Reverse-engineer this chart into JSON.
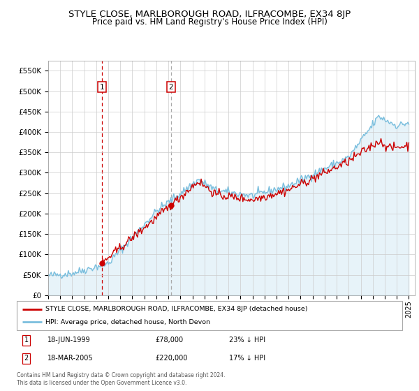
{
  "title": "STYLE CLOSE, MARLBOROUGH ROAD, ILFRACOMBE, EX34 8JP",
  "subtitle": "Price paid vs. HM Land Registry's House Price Index (HPI)",
  "legend_line1": "STYLE CLOSE, MARLBOROUGH ROAD, ILFRACOMBE, EX34 8JP (detached house)",
  "legend_line2": "HPI: Average price, detached house, North Devon",
  "footer": "Contains HM Land Registry data © Crown copyright and database right 2024.\nThis data is licensed under the Open Government Licence v3.0.",
  "sale1_date": "18-JUN-1999",
  "sale1_price": "£78,000",
  "sale1_label": "23% ↓ HPI",
  "sale2_date": "18-MAR-2005",
  "sale2_price": "£220,000",
  "sale2_label": "17% ↓ HPI",
  "ylim": [
    0,
    575000
  ],
  "yticks": [
    0,
    50000,
    100000,
    150000,
    200000,
    250000,
    300000,
    350000,
    400000,
    450000,
    500000,
    550000
  ],
  "hpi_color": "#7bbfde",
  "price_color": "#cc0000",
  "sale1_x_year": 1999.46,
  "sale1_y": 78000,
  "sale2_x_year": 2005.21,
  "sale2_y": 220000,
  "x_start": 1995,
  "x_end": 2025.5,
  "xtick_years": [
    1995,
    1996,
    1997,
    1998,
    1999,
    2000,
    2001,
    2002,
    2003,
    2004,
    2005,
    2006,
    2007,
    2008,
    2009,
    2010,
    2011,
    2012,
    2013,
    2014,
    2015,
    2016,
    2017,
    2018,
    2019,
    2020,
    2021,
    2022,
    2023,
    2024,
    2025
  ]
}
